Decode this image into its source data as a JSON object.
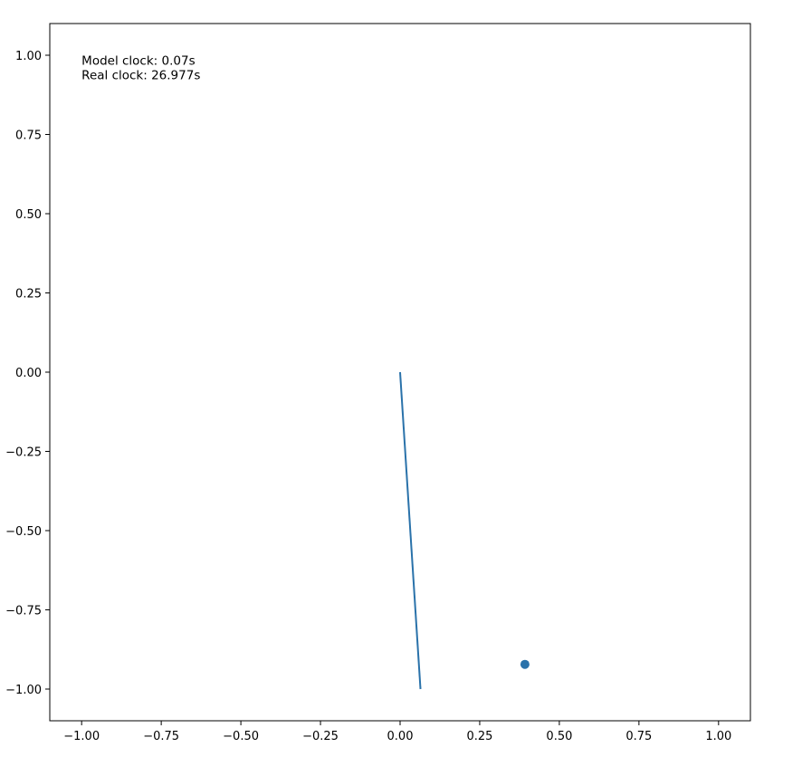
{
  "chart_data": {
    "type": "line",
    "title": "",
    "xlabel": "",
    "ylabel": "",
    "xlim": [
      -1.1,
      1.1
    ],
    "ylim": [
      -1.1,
      1.1
    ],
    "grid": false,
    "x_ticks": [
      -1.0,
      -0.75,
      -0.5,
      -0.25,
      0.0,
      0.25,
      0.5,
      0.75,
      1.0
    ],
    "x_tick_labels": [
      "−1.00",
      "−0.75",
      "−0.50",
      "−0.25",
      "0.00",
      "0.25",
      "0.50",
      "0.75",
      "1.00"
    ],
    "y_ticks": [
      1.0,
      0.75,
      0.5,
      0.25,
      0.0,
      -0.25,
      -0.5,
      -0.75,
      -1.0
    ],
    "y_tick_labels": [
      "1.00",
      "0.75",
      "0.50",
      "0.25",
      "0.00",
      "−0.25",
      "−0.50",
      "−0.75",
      "−1.00"
    ],
    "series": [
      {
        "type": "line",
        "color": "#2a72aa",
        "x": [
          0.0,
          0.064
        ],
        "y": [
          0.0,
          -1.0
        ]
      },
      {
        "type": "scatter",
        "color": "#2a72aa",
        "x": [
          0.392
        ],
        "y": [
          -0.922
        ]
      }
    ],
    "annotations": [
      {
        "text": "Model clock: 0.07s",
        "x": -1.0,
        "y": 0.985
      },
      {
        "text": "Real clock: 26.977s",
        "x": -1.0,
        "y": 0.938
      }
    ]
  }
}
